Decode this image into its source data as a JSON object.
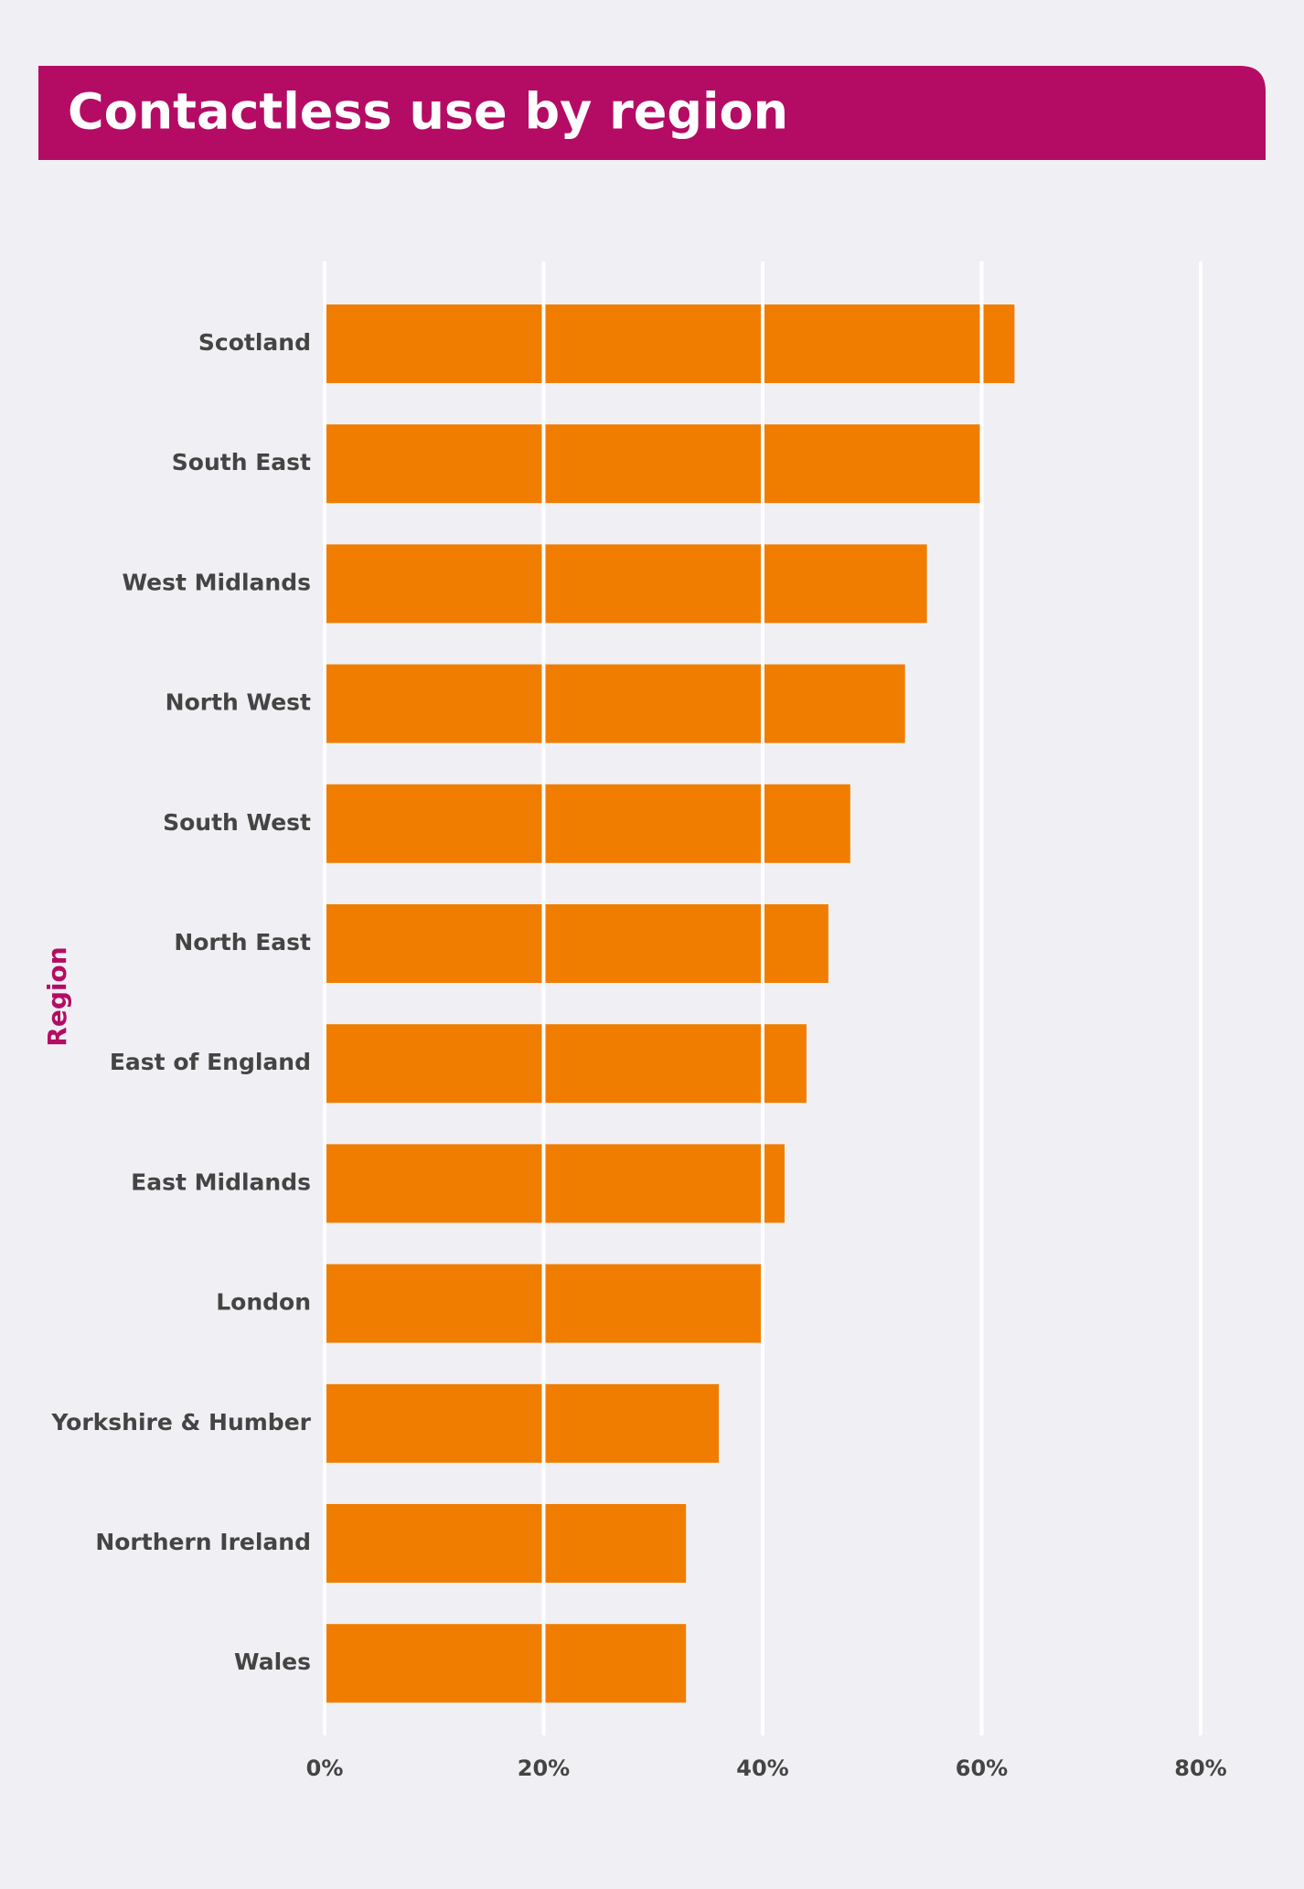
{
  "chart_data": {
    "type": "bar",
    "orientation": "horizontal",
    "title": "Contactless use by region",
    "y_label": "Region",
    "categories": [
      "Scotland",
      "South East",
      "West Midlands",
      "North West",
      "South West",
      "North East",
      "East of England",
      "East Midlands",
      "London",
      "Yorkshire & Humber",
      "Northern Ireland",
      "Wales"
    ],
    "values": [
      63,
      60,
      55,
      53,
      48,
      46,
      44,
      42,
      40,
      36,
      33,
      33
    ],
    "color": "#f07d00",
    "xlim": [
      0,
      80
    ],
    "xticks": [
      {
        "value": 0,
        "label": "0%"
      },
      {
        "value": 20,
        "label": "20%"
      },
      {
        "value": 40,
        "label": "40%"
      },
      {
        "value": 60,
        "label": "60%"
      },
      {
        "value": 80,
        "label": "80%"
      }
    ],
    "grid": true
  }
}
